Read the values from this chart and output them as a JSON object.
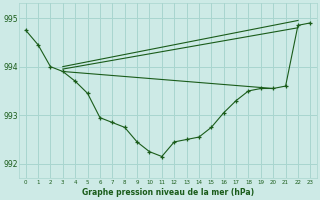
{
  "background_color": "#cdeae6",
  "grid_color": "#a8d5cf",
  "line_color": "#1a5c1a",
  "title": "Graphe pression niveau de la mer (hPa)",
  "xlim": [
    -0.5,
    23.5
  ],
  "ylim": [
    991.7,
    995.3
  ],
  "yticks": [
    992,
    993,
    994,
    995
  ],
  "xticks": [
    0,
    1,
    2,
    3,
    4,
    5,
    6,
    7,
    8,
    9,
    10,
    11,
    12,
    13,
    14,
    15,
    16,
    17,
    18,
    19,
    20,
    21,
    22,
    23
  ],
  "series": [
    {
      "x": [
        0,
        1,
        2,
        3,
        4,
        5,
        6,
        7,
        8,
        9,
        10,
        11,
        12,
        13,
        14,
        15,
        16,
        17,
        18,
        19,
        20,
        21,
        22,
        23
      ],
      "y": [
        994.75,
        994.45,
        994.0,
        993.9,
        993.7,
        993.45,
        992.95,
        992.85,
        992.75,
        992.45,
        992.25,
        992.15,
        992.45,
        992.5,
        992.55,
        992.75,
        993.05,
        993.3,
        993.5,
        993.55,
        993.55,
        993.6,
        994.85,
        994.9
      ],
      "marker": true
    },
    {
      "x": [
        3,
        22
      ],
      "y": [
        994.0,
        994.95
      ],
      "marker": false
    },
    {
      "x": [
        3,
        22
      ],
      "y": [
        993.95,
        994.8
      ],
      "marker": false
    },
    {
      "x": [
        3,
        20
      ],
      "y": [
        993.9,
        993.55
      ],
      "marker": false
    }
  ]
}
